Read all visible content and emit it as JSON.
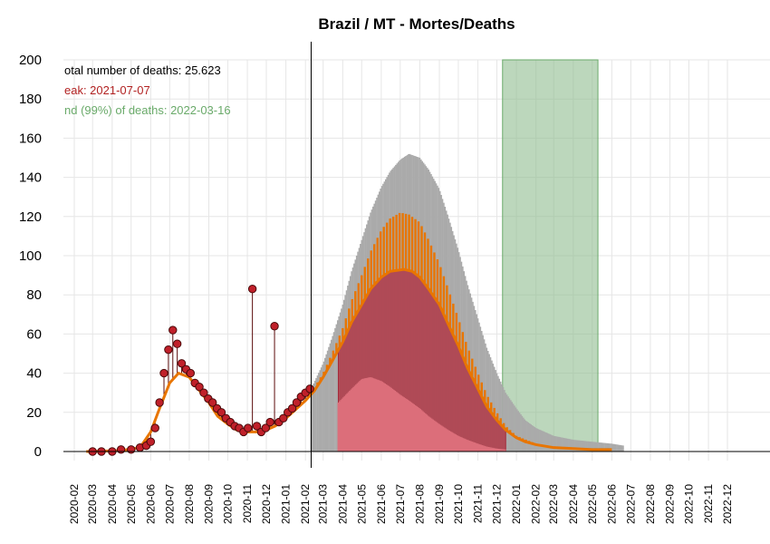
{
  "chart_data": {
    "type": "bar",
    "title": "Brazil / MT - Mortes/Deaths",
    "xlabel": "",
    "ylabel": "",
    "ylim": [
      0,
      200
    ],
    "yticks": [
      0,
      20,
      40,
      60,
      80,
      100,
      120,
      140,
      160,
      180,
      200
    ],
    "x_start_month": "2020-02",
    "x_end_month": "2022-12",
    "xticks": [
      "2020-02",
      "2020-03",
      "2020-04",
      "2020-05",
      "2020-06",
      "2020-07",
      "2020-08",
      "2020-09",
      "2020-10",
      "2020-11",
      "2020-12",
      "2021-01",
      "2021-02",
      "2021-03",
      "2021-04",
      "2021-05",
      "2021-06",
      "2021-07",
      "2021-08",
      "2021-09",
      "2021-10",
      "2021-11",
      "2021-12",
      "2022-01",
      "2022-02",
      "2022-03",
      "2022-04",
      "2022-05",
      "2022-06",
      "2022-07",
      "2022-08",
      "2022-09",
      "2022-10",
      "2022-11",
      "2022-12"
    ],
    "grid": true,
    "forecast_start": "2021-02-10",
    "annotations": [
      {
        "text": "otal number of deaths: 25.623",
        "color": "#000000"
      },
      {
        "text": "eak: 2021-07-07",
        "color": "#b22222"
      },
      {
        "text": "nd (99%) of deaths: 2022-03-16",
        "color": "#6aaa6a"
      }
    ],
    "end_region": {
      "from": "2021-12-10",
      "to": "2022-05-10",
      "color": "#8fbc8f"
    },
    "observed_daily_deaths": {
      "dates": [
        "2020-03-01",
        "2020-03-15",
        "2020-04-01",
        "2020-04-15",
        "2020-05-01",
        "2020-05-15",
        "2020-05-25",
        "2020-06-01",
        "2020-06-08",
        "2020-06-15",
        "2020-06-22",
        "2020-06-29",
        "2020-07-06",
        "2020-07-13",
        "2020-07-20",
        "2020-07-27",
        "2020-08-03",
        "2020-08-10",
        "2020-08-17",
        "2020-08-24",
        "2020-08-31",
        "2020-09-07",
        "2020-09-14",
        "2020-09-21",
        "2020-09-28",
        "2020-10-05",
        "2020-10-12",
        "2020-10-19",
        "2020-10-26",
        "2020-11-02",
        "2020-11-09",
        "2020-11-16",
        "2020-11-23",
        "2020-11-30",
        "2020-12-07",
        "2020-12-14",
        "2020-12-21",
        "2020-12-28",
        "2021-01-04",
        "2021-01-11",
        "2021-01-18",
        "2021-01-25",
        "2021-02-01",
        "2021-02-08"
      ],
      "values": [
        0,
        0,
        0,
        1,
        1,
        2,
        3,
        5,
        12,
        25,
        40,
        52,
        62,
        55,
        45,
        42,
        40,
        35,
        33,
        30,
        27,
        25,
        22,
        20,
        17,
        15,
        13,
        12,
        10,
        12,
        83,
        13,
        10,
        12,
        15,
        64,
        15,
        17,
        20,
        22,
        25,
        28,
        30,
        32
      ]
    },
    "series": [
      {
        "name": "fit",
        "color": "#e87500",
        "points": [
          [
            "2020-02-20",
            0
          ],
          [
            "2020-04-15",
            0.5
          ],
          [
            "2020-05-15",
            2
          ],
          [
            "2020-06-01",
            10
          ],
          [
            "2020-06-15",
            22
          ],
          [
            "2020-07-01",
            35
          ],
          [
            "2020-07-15",
            40
          ],
          [
            "2020-08-01",
            38
          ],
          [
            "2020-08-15",
            32
          ],
          [
            "2020-09-01",
            25
          ],
          [
            "2020-09-15",
            18
          ],
          [
            "2020-10-01",
            14
          ],
          [
            "2020-10-15",
            11
          ],
          [
            "2020-11-01",
            10
          ],
          [
            "2020-11-15",
            10
          ],
          [
            "2020-12-01",
            11
          ],
          [
            "2020-12-15",
            13
          ],
          [
            "2021-01-01",
            17
          ],
          [
            "2021-01-15",
            21
          ],
          [
            "2021-02-01",
            26
          ],
          [
            "2021-02-15",
            31
          ],
          [
            "2021-03-01",
            38
          ],
          [
            "2021-03-15",
            46
          ],
          [
            "2021-04-01",
            56
          ],
          [
            "2021-04-15",
            66
          ],
          [
            "2021-05-01",
            75
          ],
          [
            "2021-05-15",
            83
          ],
          [
            "2021-06-01",
            89
          ],
          [
            "2021-06-15",
            92
          ],
          [
            "2021-07-07",
            93
          ],
          [
            "2021-07-20",
            92
          ],
          [
            "2021-08-01",
            89
          ],
          [
            "2021-08-15",
            83
          ],
          [
            "2021-09-01",
            75
          ],
          [
            "2021-09-15",
            65
          ],
          [
            "2021-10-01",
            54
          ],
          [
            "2021-10-15",
            43
          ],
          [
            "2021-11-01",
            32
          ],
          [
            "2021-11-15",
            23
          ],
          [
            "2021-12-01",
            16
          ],
          [
            "2021-12-15",
            11
          ],
          [
            "2022-01-01",
            7
          ],
          [
            "2022-01-15",
            5
          ],
          [
            "2022-02-01",
            3.5
          ],
          [
            "2022-03-01",
            2
          ],
          [
            "2022-04-01",
            1.5
          ],
          [
            "2022-05-01",
            1
          ],
          [
            "2022-06-01",
            1
          ]
        ]
      },
      {
        "name": "upper",
        "color": "#aaaaaa",
        "points": [
          [
            "2021-02-10",
            32
          ],
          [
            "2021-03-01",
            45
          ],
          [
            "2021-03-15",
            58
          ],
          [
            "2021-04-01",
            75
          ],
          [
            "2021-04-15",
            92
          ],
          [
            "2021-05-01",
            108
          ],
          [
            "2021-05-15",
            122
          ],
          [
            "2021-06-01",
            135
          ],
          [
            "2021-06-15",
            143
          ],
          [
            "2021-07-01",
            149
          ],
          [
            "2021-07-15",
            152
          ],
          [
            "2021-08-01",
            150
          ],
          [
            "2021-08-15",
            144
          ],
          [
            "2021-09-01",
            134
          ],
          [
            "2021-09-15",
            120
          ],
          [
            "2021-10-01",
            103
          ],
          [
            "2021-10-15",
            86
          ],
          [
            "2021-11-01",
            68
          ],
          [
            "2021-11-15",
            53
          ],
          [
            "2021-12-01",
            40
          ],
          [
            "2021-12-15",
            30
          ],
          [
            "2022-01-01",
            22
          ],
          [
            "2022-01-15",
            16
          ],
          [
            "2022-02-01",
            12
          ],
          [
            "2022-03-01",
            8
          ],
          [
            "2022-04-01",
            6
          ],
          [
            "2022-05-01",
            5
          ],
          [
            "2022-06-01",
            4
          ],
          [
            "2022-06-20",
            3
          ]
        ]
      },
      {
        "name": "orange-upper",
        "color": "#e87500",
        "points": [
          [
            "2021-02-10",
            30
          ],
          [
            "2021-03-01",
            40
          ],
          [
            "2021-03-15",
            50
          ],
          [
            "2021-04-01",
            63
          ],
          [
            "2021-04-15",
            77
          ],
          [
            "2021-05-01",
            90
          ],
          [
            "2021-05-15",
            102
          ],
          [
            "2021-06-01",
            113
          ],
          [
            "2021-06-15",
            119
          ],
          [
            "2021-07-01",
            122
          ],
          [
            "2021-07-15",
            121
          ],
          [
            "2021-08-01",
            117
          ],
          [
            "2021-08-15",
            108
          ],
          [
            "2021-09-01",
            96
          ],
          [
            "2021-09-15",
            83
          ],
          [
            "2021-10-01",
            68
          ],
          [
            "2021-10-15",
            54
          ],
          [
            "2021-11-01",
            40
          ],
          [
            "2021-11-15",
            29
          ],
          [
            "2021-12-01",
            20
          ],
          [
            "2021-12-15",
            13
          ],
          [
            "2022-01-01",
            8
          ],
          [
            "2022-02-01",
            4
          ],
          [
            "2022-03-01",
            2.5
          ],
          [
            "2022-04-01",
            1.5
          ],
          [
            "2022-06-01",
            1
          ]
        ]
      },
      {
        "name": "lower",
        "color": "#dc6e7a",
        "points": [
          [
            "2021-03-25",
            25
          ],
          [
            "2021-04-15",
            32
          ],
          [
            "2021-05-01",
            37
          ],
          [
            "2021-05-15",
            38
          ],
          [
            "2021-06-01",
            36
          ],
          [
            "2021-06-15",
            33
          ],
          [
            "2021-07-01",
            29
          ],
          [
            "2021-07-15",
            26
          ],
          [
            "2021-08-01",
            22
          ],
          [
            "2021-08-15",
            18
          ],
          [
            "2021-09-01",
            14
          ],
          [
            "2021-09-15",
            11
          ],
          [
            "2021-10-01",
            8
          ],
          [
            "2021-10-15",
            6
          ],
          [
            "2021-11-01",
            4
          ],
          [
            "2021-11-15",
            2.5
          ],
          [
            "2021-12-01",
            1.5
          ],
          [
            "2021-12-15",
            1
          ]
        ]
      }
    ]
  }
}
